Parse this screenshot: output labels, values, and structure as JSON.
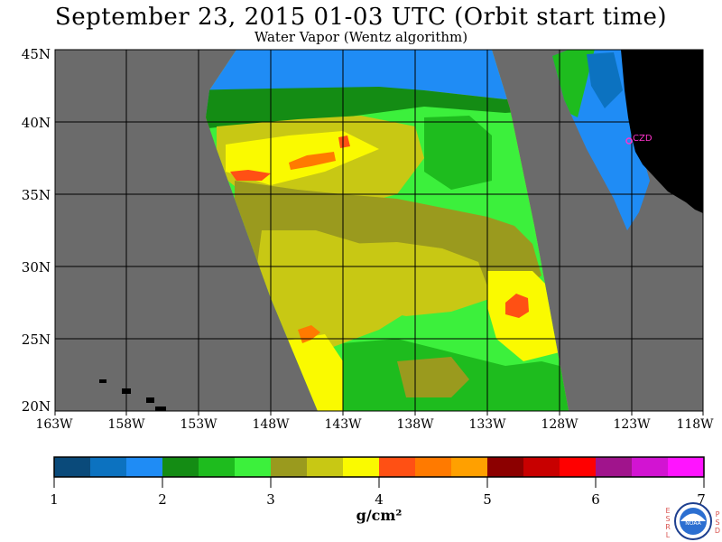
{
  "title": "September 23, 2015  01-03 UTC  (Orbit start time)",
  "subtitle": "Water Vapor (Wentz algorithm)",
  "map": {
    "lat_labels": [
      "45N",
      "40N",
      "35N",
      "30N",
      "25N",
      "20N"
    ],
    "lon_labels": [
      "163W",
      "158W",
      "153W",
      "148W",
      "143W",
      "138W",
      "133W",
      "128W",
      "123W",
      "118W"
    ],
    "station_label": "CZD",
    "colors": {
      "nodata": "#6b6b6b",
      "land": "#000000",
      "station": "#ff33cc"
    }
  },
  "colorbar": {
    "ticks": [
      "1",
      "2",
      "3",
      "4",
      "5",
      "6",
      "7"
    ],
    "unit": "g/cm²",
    "colors": [
      "#0a4a7a",
      "#0c72c0",
      "#1f8cf5",
      "#148c14",
      "#1ebc1e",
      "#3cf03c",
      "#9a9a1e",
      "#c8c814",
      "#fafa00",
      "#ff5014",
      "#ff7a00",
      "#ffa000",
      "#8c0000",
      "#c80000",
      "#ff0000",
      "#a0148c",
      "#d214d2",
      "#ff14ff"
    ]
  },
  "logo": {
    "left_text": "ESRL",
    "right_text": "PSD",
    "center_text": "NOAA"
  }
}
